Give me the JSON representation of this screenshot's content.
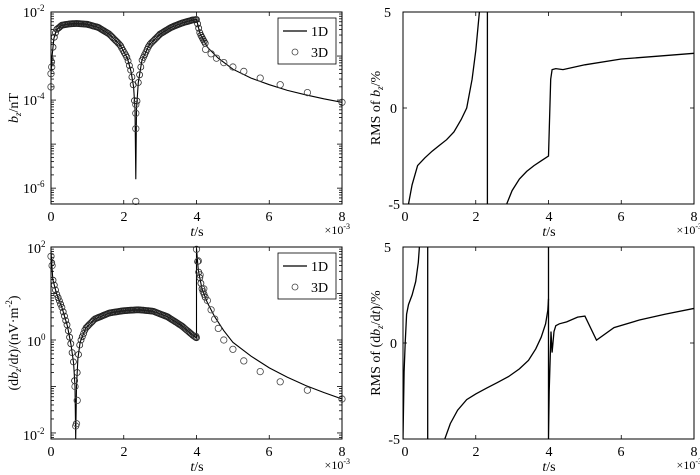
{
  "chart_data": [
    {
      "id": "bz",
      "type": "line",
      "title": "",
      "xlabel": "t/s",
      "xlabel_italic_part": "t",
      "ylabel": "b_z/nT",
      "yscale": "log",
      "xlim": [
        0,
        8
      ],
      "ylim_log10": [
        -6.36,
        -2
      ],
      "x_multiplier": "×10^-3",
      "xticks": [
        0,
        2,
        4,
        6,
        8
      ],
      "yticks": [
        "10^-6",
        "10^-4",
        "10^-2"
      ],
      "legend": [
        "1D",
        "3D"
      ],
      "legend_position": "upper right",
      "series": [
        {
          "name": "1D",
          "style": "solid line",
          "x": [
            0.0,
            0.03,
            0.08,
            0.15,
            0.3,
            0.5,
            0.7,
            1.0,
            1.3,
            1.6,
            1.9,
            2.1,
            2.2,
            2.27,
            2.31,
            2.33,
            2.35,
            2.4,
            2.5,
            2.7,
            3.0,
            3.3,
            3.6,
            3.9,
            4.0,
            4.1,
            4.3,
            4.6,
            5.0,
            5.5,
            6.0,
            6.5,
            7.0,
            7.5,
            8.0
          ],
          "log10_y": [
            -3.4,
            -3.0,
            -2.6,
            -2.4,
            -2.3,
            -2.27,
            -2.26,
            -2.28,
            -2.35,
            -2.5,
            -2.75,
            -3.05,
            -3.35,
            -3.7,
            -4.2,
            -5.8,
            -4.2,
            -3.6,
            -3.1,
            -2.75,
            -2.5,
            -2.35,
            -2.25,
            -2.18,
            -2.17,
            -2.5,
            -2.8,
            -3.05,
            -3.3,
            -3.5,
            -3.65,
            -3.78,
            -3.88,
            -3.97,
            -4.05
          ]
        },
        {
          "name": "3D",
          "style": "open circles",
          "x": [
            0.0,
            0.0,
            0.02,
            2.33,
            2.33,
            2.33,
            2.33,
            4.25,
            4.4,
            4.55,
            4.75,
            5.0,
            5.3,
            5.75,
            6.3,
            7.05,
            8.0
          ],
          "log10_y": [
            -3.7,
            -3.4,
            -3.25,
            -4.65,
            -4.3,
            -4.1,
            -6.3,
            -2.85,
            -2.95,
            -3.05,
            -3.15,
            -3.25,
            -3.35,
            -3.5,
            -3.65,
            -3.83,
            -4.05
          ]
        }
      ]
    },
    {
      "id": "rms_bz",
      "type": "line",
      "xlabel": "t/s",
      "ylabel": "RMS of b_z/%",
      "yscale": "linear",
      "xlim": [
        0,
        8
      ],
      "ylim": [
        -5,
        5
      ],
      "x_multiplier": "×10^-3",
      "xticks": [
        0,
        2,
        4,
        6,
        8
      ],
      "yticks": [
        -5,
        0,
        5
      ],
      "series": [
        {
          "name": "RMS",
          "segments": [
            {
              "x": [
                0.15,
                0.25,
                0.4,
                0.6,
                0.8,
                1.0,
                1.2,
                1.4,
                1.6,
                1.75,
                1.9,
                2.0,
                2.1
              ],
              "y": [
                -5.0,
                -4.0,
                -3.0,
                -2.6,
                -2.25,
                -1.95,
                -1.65,
                -1.25,
                -0.6,
                0.0,
                1.5,
                3.0,
                5.0
              ]
            },
            {
              "x": [
                2.32,
                2.32
              ],
              "y": [
                5.0,
                -5.0
              ]
            },
            {
              "x": [
                2.85,
                3.0,
                3.2,
                3.4,
                3.6,
                3.8,
                4.0,
                4.03,
                4.06,
                4.1,
                4.2,
                4.4,
                5.0,
                6.0,
                7.0,
                8.0
              ],
              "y": [
                -5.0,
                -4.3,
                -3.7,
                -3.3,
                -3.0,
                -2.75,
                -2.5,
                -0.5,
                1.5,
                2.0,
                2.05,
                2.0,
                2.25,
                2.55,
                2.7,
                2.85
              ]
            }
          ]
        }
      ]
    },
    {
      "id": "dbz_dt",
      "type": "line",
      "xlabel": "t/s",
      "ylabel": "(db_z/dt)/(nV·m^-2)",
      "yscale": "log",
      "xlim": [
        0,
        8
      ],
      "ylim_log10": [
        -2.13,
        2
      ],
      "x_multiplier": "×10^-3",
      "xticks": [
        0,
        2,
        4,
        6,
        8
      ],
      "yticks": [
        "10^-2",
        "10^0",
        "10^2"
      ],
      "legend": [
        "1D",
        "3D"
      ],
      "legend_position": "upper right",
      "series": [
        {
          "name": "1D",
          "style": "solid line",
          "x": [
            0.0,
            0.05,
            0.15,
            0.3,
            0.45,
            0.55,
            0.62,
            0.66,
            0.68,
            0.7,
            0.74,
            0.8,
            0.95,
            1.2,
            1.6,
            2.0,
            2.4,
            2.8,
            3.2,
            3.6,
            3.9,
            3.99,
            4.0,
            4.0,
            4.05,
            4.15,
            4.3,
            4.5,
            4.75,
            5.0,
            5.5,
            6.0,
            6.5,
            7.0,
            7.5,
            8.0
          ],
          "log10_y": [
            1.9,
            1.3,
            1.0,
            0.7,
            0.3,
            -0.1,
            -0.5,
            -1.0,
            -2.13,
            -1.0,
            -0.4,
            -0.05,
            0.25,
            0.45,
            0.58,
            0.63,
            0.65,
            0.62,
            0.5,
            0.3,
            0.1,
            0.05,
            0.05,
            1.97,
            1.5,
            1.1,
            0.8,
            0.5,
            0.2,
            -0.05,
            -0.35,
            -0.6,
            -0.8,
            -0.98,
            -1.13,
            -1.27
          ]
        },
        {
          "name": "3D",
          "style": "open circles",
          "x": [
            0.0,
            0.03,
            0.66,
            0.68,
            0.7,
            0.72,
            3.98,
            4.0,
            4.05,
            4.1,
            4.2,
            4.3,
            4.4,
            4.5,
            4.6,
            4.75,
            5.0,
            5.3,
            5.75,
            6.3,
            7.05,
            8.0
          ],
          "log10_y": [
            1.8,
            1.6,
            -1.0,
            -1.85,
            -1.8,
            -1.3,
            0.08,
            1.95,
            1.7,
            1.4,
            1.1,
            0.85,
            0.65,
            0.45,
            0.25,
            0.0,
            -0.2,
            -0.45,
            -0.68,
            -0.9,
            -1.08,
            -1.27
          ]
        }
      ]
    },
    {
      "id": "rms_dbz_dt",
      "type": "line",
      "xlabel": "t/s",
      "ylabel": "RMS of (db_z/dt)/%",
      "yscale": "linear",
      "xlim": [
        0,
        8
      ],
      "ylim": [
        -5,
        5
      ],
      "x_multiplier": "×10^-3",
      "xticks": [
        0,
        2,
        4,
        6,
        8
      ],
      "yticks": [
        -5,
        0,
        5
      ],
      "series": [
        {
          "name": "RMS",
          "segments": [
            {
              "x": [
                0.0,
                0.03,
                0.06,
                0.1,
                0.15,
                0.25,
                0.35,
                0.42,
                0.45
              ],
              "y": [
                -5.0,
                -1.5,
                0.0,
                1.5,
                2.0,
                2.5,
                3.2,
                4.2,
                5.0
              ]
            },
            {
              "x": [
                0.68,
                0.68
              ],
              "y": [
                5.0,
                -5.0
              ]
            },
            {
              "x": [
                1.15,
                1.3,
                1.5,
                1.75,
                2.0,
                2.3,
                2.6,
                2.9,
                3.2,
                3.45,
                3.65,
                3.8,
                3.92,
                3.98,
                4.0
              ],
              "y": [
                -5.0,
                -4.2,
                -3.5,
                -2.95,
                -2.65,
                -2.35,
                -2.05,
                -1.75,
                -1.35,
                -0.9,
                -0.3,
                0.3,
                1.0,
                1.7,
                2.3
              ]
            },
            {
              "x": [
                4.0,
                4.0,
                4.02,
                4.07,
                4.1,
                4.15,
                4.2,
                4.3,
                4.5,
                4.8,
                5.0,
                5.32,
                5.8,
                6.5,
                7.2,
                8.0
              ],
              "y": [
                5.0,
                -5.0,
                -2.5,
                0.6,
                -0.5,
                0.6,
                0.9,
                1.0,
                1.1,
                1.35,
                1.4,
                0.15,
                0.8,
                1.2,
                1.5,
                1.8
              ]
            }
          ]
        }
      ]
    }
  ],
  "labels": {
    "xlabel_t": "t",
    "xlabel_s": "/s",
    "multiplier_base": "×10",
    "multiplier_exp": "-3",
    "legend_1d": "1D",
    "legend_3d": "3D",
    "p1_ylabel_b": "b",
    "p1_ylabel_sub": "z",
    "p1_ylabel_rest": "/nT",
    "p2_ylabel_pre": "RMS of ",
    "p2_ylabel_b": "b",
    "p2_ylabel_sub": "z",
    "p2_ylabel_rest": "/%",
    "p3_ylabel_pre": "(d",
    "p3_ylabel_b": "b",
    "p3_ylabel_sub": "z",
    "p3_ylabel_mid": "/d",
    "p3_ylabel_t": "t",
    "p3_ylabel_rest": ")/(nV·m",
    "p3_ylabel_exp": "-2",
    "p3_ylabel_close": ")",
    "p4_ylabel_pre": "RMS of (d",
    "p4_ylabel_b": "b",
    "p4_ylabel_sub": "z",
    "p4_ylabel_mid": "/d",
    "p4_ylabel_t": "t",
    "p4_ylabel_rest": ")/%",
    "xtick": [
      "0",
      "2",
      "4",
      "6",
      "8"
    ],
    "log_base": "10",
    "p1_yexp": [
      "-2",
      "-4",
      "-6"
    ],
    "p3_yexp": [
      "2",
      "0",
      "-2"
    ],
    "lin_ytick": [
      "5",
      "0",
      "-5"
    ]
  }
}
